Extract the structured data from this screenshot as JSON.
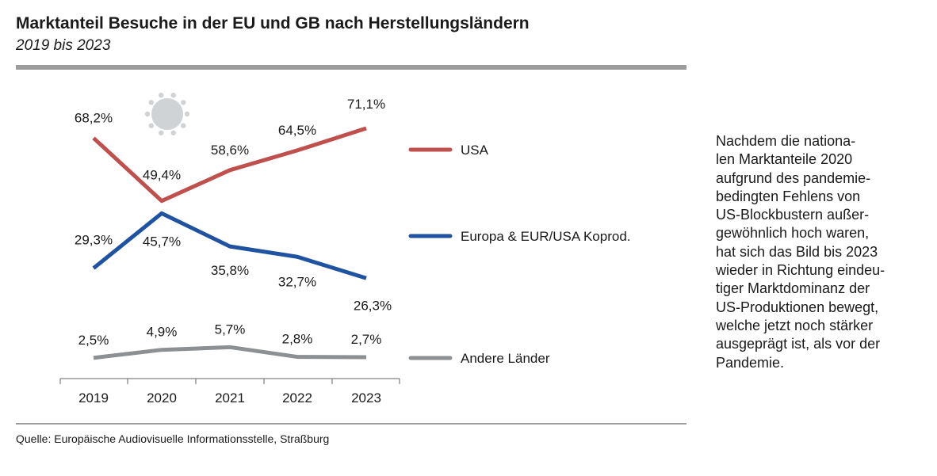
{
  "header": {
    "title": "Marktanteil Besuche in der EU und GB nach Herstellungsländern",
    "subtitle": "2019 bis 2023"
  },
  "source": "Quelle: Europäische Audiovisuelle Informationsstelle, Straßburg",
  "note_lines": [
    "Nachdem die nationa-",
    "len Marktanteile 2020",
    "aufgrund des pandemie-",
    "bedingten Fehlens von",
    "US-Blockbustern außer-",
    "gewöhnlich hoch waren,",
    "hat sich das Bild bis 2023",
    "wieder in Richtung eindeu-",
    "tiger Marktdominanz der",
    "US-Produktionen bewegt,",
    "welche jetzt noch stärker",
    "ausgeprägt ist, als vor der",
    "Pandemie."
  ],
  "icons": {
    "pandemic": "virus-icon"
  },
  "chart_data": {
    "type": "line",
    "x": [
      "2019",
      "2020",
      "2021",
      "2022",
      "2023"
    ],
    "unit": "%",
    "series": [
      {
        "name": "USA",
        "color": "#c0504d",
        "values": [
          68.2,
          49.4,
          58.6,
          64.5,
          71.1
        ],
        "labels": [
          "68,2%",
          "49,4%",
          "58,6%",
          "64,5%",
          "71,1%"
        ]
      },
      {
        "name": "Europa & EUR/USA Koprod.",
        "color": "#1f52a0",
        "values": [
          29.3,
          45.7,
          35.8,
          32.7,
          26.3
        ],
        "labels": [
          "29,3%",
          "45,7%",
          "35,8%",
          "32,7%",
          "26,3%"
        ]
      },
      {
        "name": "Andere Länder",
        "color": "#8c9093",
        "values": [
          2.5,
          4.9,
          5.7,
          2.8,
          2.7
        ],
        "labels": [
          "2,5%",
          "4,9%",
          "5,7%",
          "2,8%",
          "2,7%"
        ]
      }
    ],
    "legend_position": "right",
    "grid": false
  }
}
